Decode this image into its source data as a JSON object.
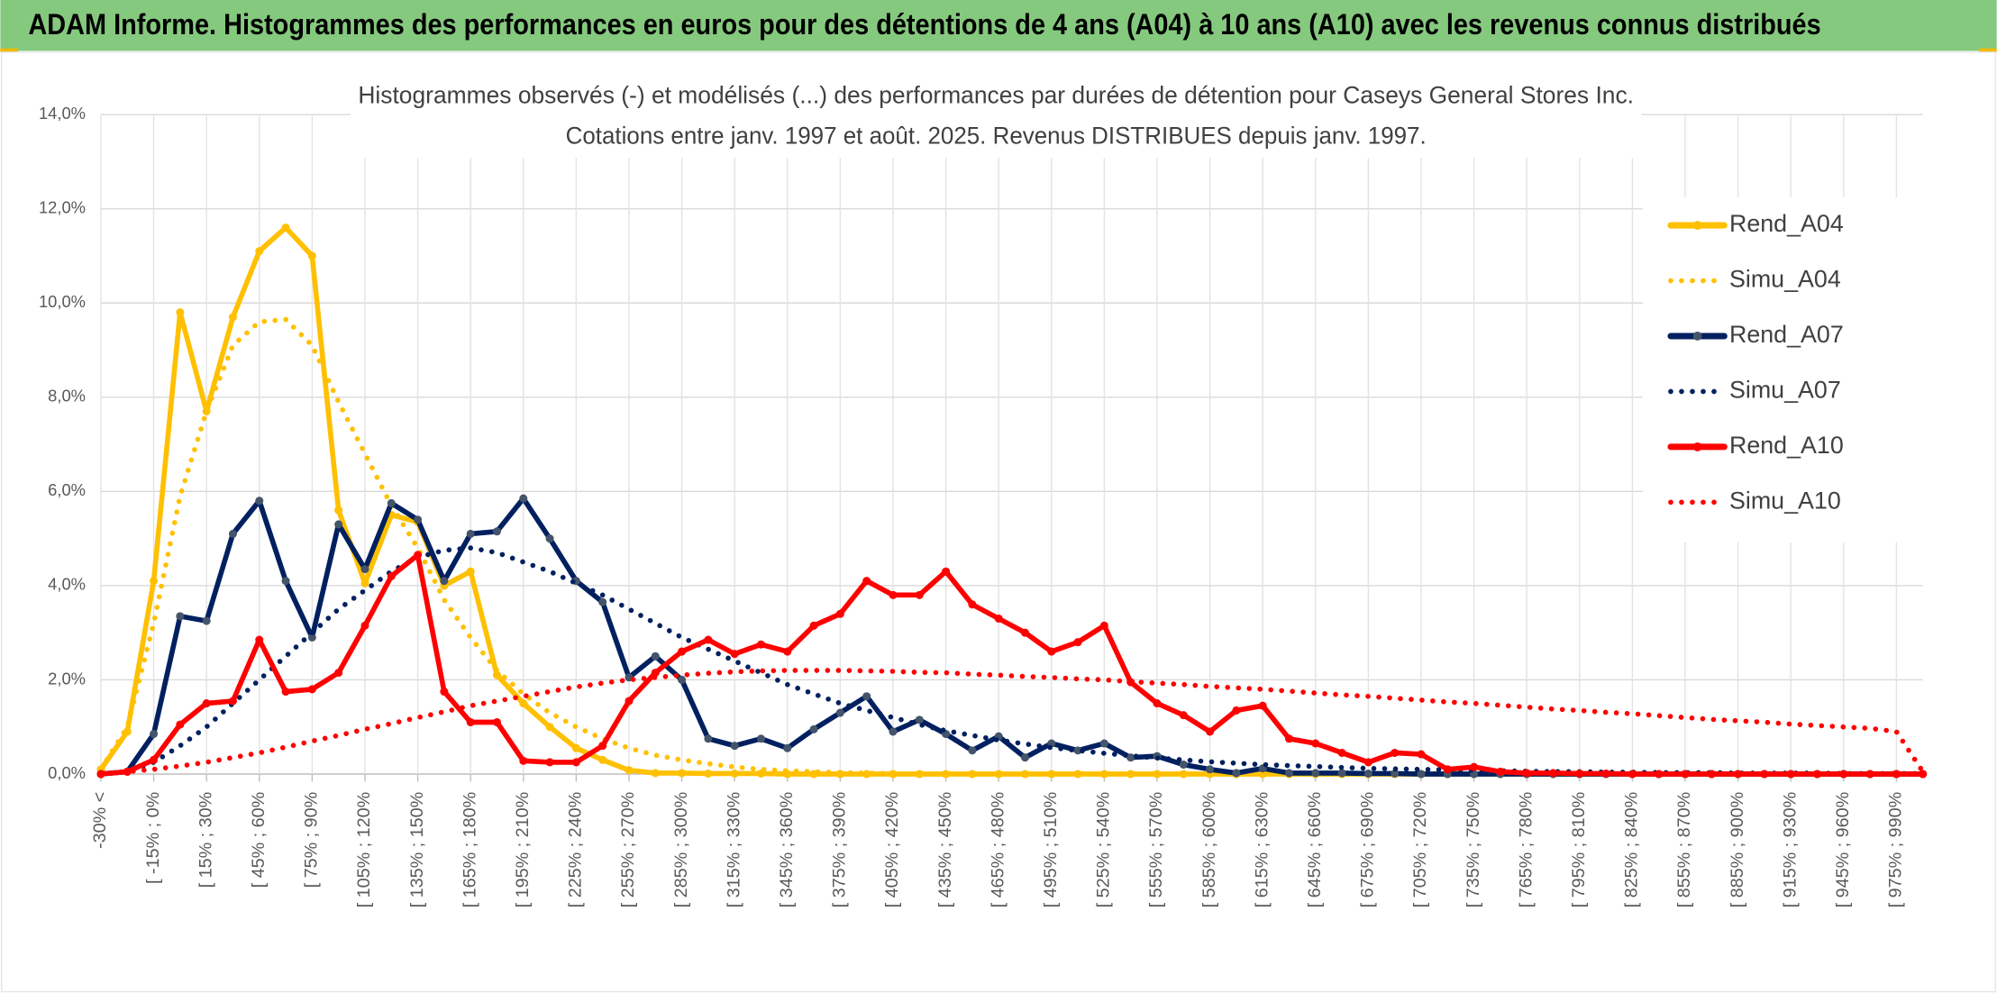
{
  "header": "ADAM Informe. Histogrammes des performances en euros pour des détentions de 4 ans (A04) à 10 ans (A10) avec les revenus connus distribués",
  "chart_data": {
    "type": "line",
    "title": "Histogrammes observés (-) et modélisés (...) des performances par durées de détention pour Caseys General Stores Inc.",
    "subtitle": "Cotations entre janv. 1997 et août. 2025. Revenus DISTRIBUES depuis janv. 1997.",
    "categories": [
      "-30% <",
      null,
      "[ -15% ; 0%",
      null,
      "[ 15% ; 30%",
      null,
      "[ 45% ; 60%",
      null,
      "[ 75% ; 90%",
      null,
      "[ 105% ; 120%",
      null,
      "[ 135% ; 150%",
      null,
      "[ 165% ; 180%",
      null,
      "[ 195% ; 210%",
      null,
      "[ 225% ; 240%",
      null,
      "[ 255% ; 270%",
      null,
      "[ 285% ; 300%",
      null,
      "[ 315% ; 330%",
      null,
      "[ 345% ; 360%",
      null,
      "[ 375% ; 390%",
      null,
      "[ 405% ; 420%",
      null,
      "[ 435% ; 450%",
      null,
      "[ 465% ; 480%",
      null,
      "[ 495% ; 510%",
      null,
      "[ 525% ; 540%",
      null,
      "[ 555% ; 570%",
      null,
      "[ 585% ; 600%",
      null,
      "[ 615% ; 630%",
      null,
      "[ 645% ; 660%",
      null,
      "[ 675% ; 690%",
      null,
      "[ 705% ; 720%",
      null,
      "[ 735% ; 750%",
      null,
      "[ 765% ; 780%",
      null,
      "[ 795% ; 810%",
      null,
      "[ 825% ; 840%",
      null,
      "[ 855% ; 870%",
      null,
      "[ 885% ; 900%",
      null,
      "[ 915% ; 930%",
      null,
      "[ 945% ; 960%",
      null,
      "[ 975% ; 990%",
      null
    ],
    "series": [
      {
        "name": "Rend_A04",
        "color": "#FFC000",
        "style": "solid",
        "values": [
          0.1,
          0.9,
          4.1,
          9.8,
          7.7,
          9.7,
          11.1,
          11.6,
          11.0,
          5.6,
          4.05,
          5.5,
          5.35,
          4.0,
          4.3,
          2.1,
          1.5,
          1.0,
          0.55,
          0.3,
          0.08,
          0.02,
          0.02,
          0.01,
          0.01,
          0.01,
          0,
          0,
          0,
          0,
          0,
          0,
          0,
          0,
          0,
          0,
          0,
          0,
          0,
          0,
          0,
          0,
          0,
          0,
          0,
          0,
          0,
          0,
          0,
          0,
          0,
          0,
          0,
          0,
          0,
          0,
          0,
          0,
          0,
          0,
          0,
          0,
          0,
          0,
          0,
          0,
          0,
          0,
          0,
          0
        ]
      },
      {
        "name": "Simu_A04",
        "color": "#FFC000",
        "style": "dotted",
        "values": [
          0.1,
          1.0,
          3.2,
          5.9,
          7.7,
          9.1,
          9.6,
          9.65,
          9.1,
          7.9,
          6.8,
          5.7,
          4.8,
          3.7,
          2.9,
          2.2,
          1.7,
          1.3,
          1.0,
          0.75,
          0.55,
          0.4,
          0.3,
          0.22,
          0.15,
          0.1,
          0.07,
          0.05,
          0.03,
          0.02,
          0.01,
          0,
          0,
          0,
          0,
          0,
          0,
          0,
          0,
          0,
          0,
          0,
          0,
          0,
          0,
          0,
          0,
          0,
          0,
          0,
          0,
          0,
          0,
          0,
          0,
          0,
          0,
          0,
          0,
          0,
          0,
          0,
          0,
          0,
          0,
          0,
          0,
          0,
          0,
          0
        ]
      },
      {
        "name": "Rend_A07",
        "color": "#002060",
        "style": "solid",
        "values": [
          0,
          0.05,
          0.85,
          3.35,
          3.25,
          5.1,
          5.8,
          4.1,
          2.9,
          5.3,
          4.35,
          5.75,
          5.4,
          4.1,
          5.1,
          5.15,
          5.85,
          5.0,
          4.1,
          3.65,
          2.05,
          2.5,
          2.0,
          0.75,
          0.6,
          0.75,
          0.55,
          0.95,
          1.3,
          1.65,
          0.9,
          1.15,
          0.85,
          0.5,
          0.8,
          0.35,
          0.65,
          0.5,
          0.65,
          0.35,
          0.38,
          0.2,
          0.1,
          0.02,
          0.12,
          0.02,
          0.02,
          0.02,
          0.01,
          0.01,
          0,
          0,
          0,
          0,
          0,
          0,
          0,
          0,
          0,
          0,
          0,
          0,
          0,
          0,
          0,
          0,
          0,
          0,
          0,
          0
        ]
      },
      {
        "name": "Simu_A07",
        "color": "#002060",
        "style": "dotted",
        "values": [
          0,
          0.05,
          0.25,
          0.6,
          1.0,
          1.5,
          2.0,
          2.5,
          3.0,
          3.5,
          3.9,
          4.3,
          4.6,
          4.75,
          4.8,
          4.7,
          4.5,
          4.3,
          4.05,
          3.8,
          3.5,
          3.2,
          2.9,
          2.65,
          2.4,
          2.15,
          1.9,
          1.7,
          1.5,
          1.35,
          1.2,
          1.05,
          0.92,
          0.82,
          0.72,
          0.64,
          0.56,
          0.5,
          0.44,
          0.39,
          0.34,
          0.3,
          0.26,
          0.23,
          0.2,
          0.18,
          0.16,
          0.14,
          0.12,
          0.11,
          0.1,
          0.09,
          0.08,
          0.07,
          0.06,
          0.05,
          0.05,
          0.04,
          0.04,
          0.03,
          0.03,
          0.03,
          0.02,
          0.02,
          0.02,
          0.02,
          0.01,
          0.01,
          0.01,
          0.01
        ]
      },
      {
        "name": "Rend_A10",
        "color": "#FF0000",
        "style": "solid",
        "values": [
          0,
          0.05,
          0.3,
          1.05,
          1.5,
          1.55,
          2.85,
          1.75,
          1.8,
          2.15,
          3.15,
          4.2,
          4.65,
          1.75,
          1.1,
          1.1,
          0.28,
          0.25,
          0.25,
          0.6,
          1.55,
          2.15,
          2.6,
          2.85,
          2.55,
          2.75,
          2.6,
          3.15,
          3.4,
          4.1,
          3.8,
          3.8,
          4.3,
          3.6,
          3.3,
          3.0,
          2.6,
          2.8,
          3.15,
          1.95,
          1.5,
          1.25,
          0.9,
          1.35,
          1.45,
          0.75,
          0.65,
          0.45,
          0.25,
          0.45,
          0.42,
          0.1,
          0.15,
          0.05,
          0.02,
          0.02,
          0.01,
          0.01,
          0,
          0,
          0,
          0,
          0,
          0,
          0,
          0,
          0,
          0,
          0,
          0
        ]
      },
      {
        "name": "Simu_A10",
        "color": "#FF0000",
        "style": "dotted",
        "values": [
          0,
          0.05,
          0.1,
          0.17,
          0.25,
          0.35,
          0.45,
          0.57,
          0.7,
          0.82,
          0.95,
          1.07,
          1.2,
          1.32,
          1.45,
          1.55,
          1.65,
          1.75,
          1.85,
          1.93,
          2.0,
          2.05,
          2.1,
          2.14,
          2.17,
          2.19,
          2.2,
          2.2,
          2.2,
          2.19,
          2.18,
          2.16,
          2.15,
          2.12,
          2.1,
          2.07,
          2.05,
          2.02,
          2.0,
          1.96,
          1.93,
          1.9,
          1.86,
          1.83,
          1.8,
          1.76,
          1.72,
          1.68,
          1.65,
          1.61,
          1.57,
          1.53,
          1.5,
          1.46,
          1.42,
          1.38,
          1.35,
          1.31,
          1.28,
          1.24,
          1.2,
          1.16,
          1.13,
          1.1,
          1.06,
          1.03,
          1.0,
          0.97,
          0.9,
          0.05
        ]
      }
    ],
    "ylim": [
      0,
      14
    ],
    "yticks": [
      {
        "value": 0,
        "label": "0,0%"
      },
      {
        "value": 2,
        "label": "2,0%"
      },
      {
        "value": 4,
        "label": "4,0%"
      },
      {
        "value": 6,
        "label": "6,0%"
      },
      {
        "value": 8,
        "label": "8,0%"
      },
      {
        "value": 10,
        "label": "10,0%"
      },
      {
        "value": 12,
        "label": "12,0%"
      },
      {
        "value": 14,
        "label": "14,0%"
      }
    ],
    "grid": true,
    "legend": "right"
  }
}
